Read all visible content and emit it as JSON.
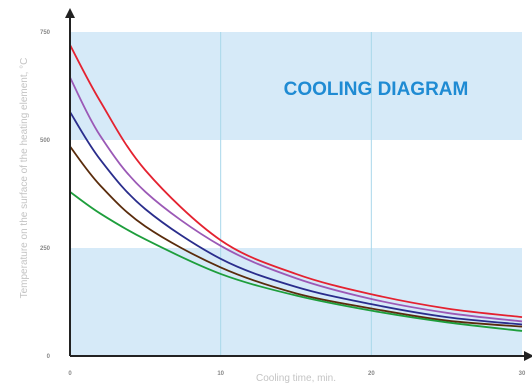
{
  "chart_data": {
    "type": "line",
    "title": "COOLING DIAGRAM",
    "xlabel": "Cooling time, min.",
    "ylabel": "Temperature on the surface of the heating element, °C",
    "xlim": [
      0,
      30
    ],
    "ylim": [
      0,
      750
    ],
    "x_ticks": [
      "0",
      "10",
      "20",
      "30"
    ],
    "y_ticks": [
      "0",
      "250",
      "500",
      "750"
    ],
    "grid": true,
    "legend": "none",
    "band_color": "#d6eaf8",
    "gridline_color": "#a9d8ea",
    "title_color": "#1f8bd3",
    "series": [
      {
        "color": "#e42230",
        "x": [
          0,
          2,
          5,
          10,
          15,
          20,
          25,
          30
        ],
        "y": [
          720,
          590,
          430,
          268,
          190,
          143,
          110,
          90
        ]
      },
      {
        "color": "#9b59b6",
        "x": [
          0,
          2,
          5,
          10,
          15,
          20,
          25,
          30
        ],
        "y": [
          645,
          510,
          380,
          255,
          180,
          132,
          100,
          80
        ]
      },
      {
        "color": "#2a2d8c",
        "x": [
          0,
          2,
          5,
          10,
          15,
          20,
          25,
          30
        ],
        "y": [
          565,
          455,
          340,
          225,
          160,
          120,
          90,
          73
        ]
      },
      {
        "color": "#5a2c0c",
        "x": [
          0,
          2,
          5,
          10,
          15,
          20,
          25,
          30
        ],
        "y": [
          485,
          395,
          300,
          205,
          145,
          110,
          82,
          68
        ]
      },
      {
        "color": "#1e9e3c",
        "x": [
          0,
          2,
          5,
          10,
          15,
          20,
          25,
          30
        ],
        "y": [
          380,
          330,
          270,
          190,
          140,
          105,
          78,
          58
        ]
      }
    ]
  }
}
